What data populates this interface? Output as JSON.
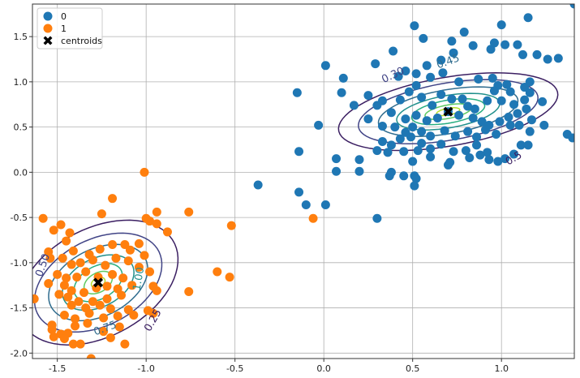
{
  "chart_data": {
    "type": "scatter",
    "title": "",
    "xlabel": "",
    "ylabel": "",
    "xlim": [
      -1.64,
      1.41
    ],
    "ylim": [
      -2.06,
      1.86
    ],
    "grid": true,
    "legend_placement": "top-left",
    "x_ticks": [
      "-1.5",
      "-1.0",
      "-0.5",
      "0.0",
      "0.5",
      "1.0"
    ],
    "y_ticks": [
      "-2.0",
      "-1.5",
      "-1.0",
      "-0.5",
      "0.0",
      "0.5",
      "1.0",
      "1.5"
    ],
    "series": [
      {
        "name": "0",
        "color": "#1f77b4",
        "points": [
          [
            0.51,
            1.62
          ],
          [
            0.56,
            1.48
          ],
          [
            0.72,
            1.45
          ],
          [
            0.79,
            1.55
          ],
          [
            0.96,
            1.43
          ],
          [
            1.0,
            1.63
          ],
          [
            1.15,
            1.71
          ],
          [
            0.29,
            1.2
          ],
          [
            0.39,
            1.34
          ],
          [
            0.46,
            1.12
          ],
          [
            0.58,
            1.18
          ],
          [
            0.66,
            1.24
          ],
          [
            0.73,
            1.32
          ],
          [
            0.84,
            1.4
          ],
          [
            0.94,
            1.36
          ],
          [
            1.02,
            1.41
          ],
          [
            1.09,
            1.41
          ],
          [
            1.12,
            1.3
          ],
          [
            1.2,
            1.3
          ],
          [
            1.26,
            1.25
          ],
          [
            1.32,
            1.26
          ],
          [
            0.01,
            1.18
          ],
          [
            0.11,
            1.04
          ],
          [
            0.42,
            1.06
          ],
          [
            0.52,
            1.09
          ],
          [
            0.6,
            1.05
          ],
          [
            0.67,
            1.1
          ],
          [
            0.76,
            1.0
          ],
          [
            0.87,
            1.03
          ],
          [
            0.95,
            1.04
          ],
          [
            0.98,
            0.96
          ],
          [
            1.03,
            0.97
          ],
          [
            1.05,
            0.89
          ],
          [
            1.13,
            0.94
          ],
          [
            1.16,
            1.0
          ],
          [
            -0.15,
            0.88
          ],
          [
            0.1,
            0.88
          ],
          [
            0.25,
            0.85
          ],
          [
            0.33,
            0.79
          ],
          [
            0.43,
            0.8
          ],
          [
            0.48,
            0.89
          ],
          [
            0.52,
            0.96
          ],
          [
            0.55,
            0.83
          ],
          [
            0.61,
            0.74
          ],
          [
            0.66,
            0.86
          ],
          [
            0.72,
            0.81
          ],
          [
            0.78,
            0.81
          ],
          [
            0.81,
            0.73
          ],
          [
            0.85,
            0.7
          ],
          [
            0.92,
            0.79
          ],
          [
            0.96,
            0.9
          ],
          [
            1.0,
            0.79
          ],
          [
            1.07,
            0.75
          ],
          [
            1.13,
            0.8
          ],
          [
            1.16,
            0.88
          ],
          [
            1.23,
            0.78
          ],
          [
            0.17,
            0.74
          ],
          [
            0.3,
            0.74
          ],
          [
            0.38,
            0.66
          ],
          [
            0.46,
            0.59
          ],
          [
            0.52,
            0.63
          ],
          [
            0.58,
            0.57
          ],
          [
            0.64,
            0.6
          ],
          [
            0.7,
            0.67
          ],
          [
            0.76,
            0.63
          ],
          [
            0.84,
            0.6
          ],
          [
            0.89,
            0.56
          ],
          [
            0.93,
            0.52
          ],
          [
            0.99,
            0.56
          ],
          [
            1.04,
            0.61
          ],
          [
            1.09,
            0.65
          ],
          [
            1.14,
            0.7
          ],
          [
            1.17,
            0.58
          ],
          [
            -0.03,
            0.52
          ],
          [
            0.25,
            0.59
          ],
          [
            0.33,
            0.51
          ],
          [
            0.4,
            0.5
          ],
          [
            0.46,
            0.44
          ],
          [
            0.5,
            0.5
          ],
          [
            0.55,
            0.45
          ],
          [
            0.6,
            0.4
          ],
          [
            0.68,
            0.46
          ],
          [
            0.74,
            0.4
          ],
          [
            0.81,
            0.45
          ],
          [
            0.86,
            0.39
          ],
          [
            0.91,
            0.47
          ],
          [
            0.97,
            0.42
          ],
          [
            1.05,
            0.52
          ],
          [
            1.1,
            0.52
          ],
          [
            1.16,
            0.45
          ],
          [
            1.24,
            0.52
          ],
          [
            0.33,
            0.34
          ],
          [
            0.38,
            0.3
          ],
          [
            0.43,
            0.37
          ],
          [
            0.49,
            0.39
          ],
          [
            0.55,
            0.32
          ],
          [
            0.6,
            0.26
          ],
          [
            0.66,
            0.31
          ],
          [
            0.73,
            0.23
          ],
          [
            0.8,
            0.24
          ],
          [
            0.86,
            0.3
          ],
          [
            0.92,
            0.22
          ],
          [
            1.11,
            0.3
          ],
          [
            1.15,
            0.3
          ],
          [
            1.37,
            0.42
          ],
          [
            1.4,
            0.38
          ],
          [
            -0.14,
            0.23
          ],
          [
            0.3,
            0.24
          ],
          [
            0.36,
            0.22
          ],
          [
            0.45,
            0.23
          ],
          [
            0.53,
            0.24
          ],
          [
            0.6,
            0.17
          ],
          [
            0.71,
            0.11
          ],
          [
            0.82,
            0.16
          ],
          [
            0.88,
            0.19
          ],
          [
            0.93,
            0.14
          ],
          [
            0.98,
            0.12
          ],
          [
            1.02,
            0.15
          ],
          [
            1.07,
            0.2
          ],
          [
            0.07,
            0.15
          ],
          [
            0.2,
            0.14
          ],
          [
            0.5,
            0.12
          ],
          [
            0.07,
            0.01
          ],
          [
            0.2,
            0.01
          ],
          [
            0.38,
            0.0
          ],
          [
            0.45,
            -0.04
          ],
          [
            0.51,
            -0.04
          ],
          [
            0.52,
            -0.07
          ],
          [
            0.7,
            0.08
          ],
          [
            0.51,
            -0.15
          ],
          [
            0.37,
            -0.04
          ],
          [
            -0.37,
            -0.14
          ],
          [
            -0.14,
            -0.22
          ],
          [
            -0.1,
            -0.36
          ],
          [
            0.01,
            -0.36
          ],
          [
            0.3,
            -0.51
          ],
          [
            1.41,
            1.86
          ]
        ]
      },
      {
        "name": "1",
        "color": "#ff7f0e",
        "points": [
          [
            -1.01,
            0.0
          ],
          [
            -1.19,
            -0.29
          ],
          [
            -1.58,
            -0.51
          ],
          [
            -1.48,
            -0.58
          ],
          [
            -1.45,
            -0.76
          ],
          [
            -1.43,
            -0.67
          ],
          [
            -1.52,
            -0.64
          ],
          [
            -1.25,
            -0.46
          ],
          [
            -1.0,
            -0.51
          ],
          [
            -0.76,
            -0.44
          ],
          [
            -0.94,
            -0.44
          ],
          [
            -0.98,
            -0.54
          ],
          [
            -0.94,
            -0.57
          ],
          [
            -0.88,
            -0.66
          ],
          [
            -1.55,
            -0.88
          ],
          [
            -1.41,
            -0.87
          ],
          [
            -1.32,
            -0.91
          ],
          [
            -1.26,
            -0.85
          ],
          [
            -1.19,
            -0.8
          ],
          [
            -1.12,
            -0.8
          ],
          [
            -1.04,
            -0.79
          ],
          [
            -1.09,
            -0.86
          ],
          [
            -1.01,
            -0.92
          ],
          [
            -1.54,
            -0.95
          ],
          [
            -1.47,
            -0.95
          ],
          [
            -1.42,
            -1.02
          ],
          [
            -1.37,
            -1.0
          ],
          [
            -1.3,
            -0.97
          ],
          [
            -1.23,
            -1.03
          ],
          [
            -1.17,
            -0.95
          ],
          [
            -1.1,
            -0.98
          ],
          [
            -1.04,
            -1.05
          ],
          [
            -0.98,
            -1.1
          ],
          [
            -1.55,
            -1.23
          ],
          [
            -1.5,
            -1.13
          ],
          [
            -1.45,
            -1.17
          ],
          [
            -1.39,
            -1.16
          ],
          [
            -1.34,
            -1.1
          ],
          [
            -1.27,
            -1.16
          ],
          [
            -1.19,
            -1.13
          ],
          [
            -1.13,
            -1.17
          ],
          [
            -1.08,
            -1.25
          ],
          [
            -1.46,
            -1.25
          ],
          [
            -1.42,
            -1.31
          ],
          [
            -1.35,
            -1.33
          ],
          [
            -1.28,
            -1.28
          ],
          [
            -1.22,
            -1.26
          ],
          [
            -1.16,
            -1.29
          ],
          [
            -1.14,
            -1.36
          ],
          [
            -1.22,
            -1.4
          ],
          [
            -1.3,
            -1.43
          ],
          [
            -1.38,
            -1.43
          ],
          [
            -1.44,
            -1.38
          ],
          [
            -1.49,
            -1.35
          ],
          [
            -1.42,
            -1.47
          ],
          [
            -1.34,
            -1.5
          ],
          [
            -1.26,
            -1.47
          ],
          [
            -1.2,
            -1.51
          ],
          [
            -1.1,
            -1.52
          ],
          [
            -1.46,
            -1.58
          ],
          [
            -1.4,
            -1.62
          ],
          [
            -1.32,
            -1.56
          ],
          [
            -1.24,
            -1.61
          ],
          [
            -1.16,
            -1.59
          ],
          [
            -1.07,
            -1.58
          ],
          [
            -0.99,
            -1.53
          ],
          [
            -0.96,
            -1.56
          ],
          [
            -0.94,
            -1.31
          ],
          [
            -0.96,
            -1.26
          ],
          [
            -0.76,
            -1.32
          ],
          [
            -0.6,
            -1.1
          ],
          [
            -0.53,
            -1.16
          ],
          [
            -0.52,
            -0.59
          ],
          [
            -0.06,
            -0.51
          ],
          [
            -1.63,
            -1.4
          ],
          [
            -1.53,
            -1.69
          ],
          [
            -1.53,
            -1.74
          ],
          [
            -1.48,
            -1.79
          ],
          [
            -1.44,
            -1.78
          ],
          [
            -1.4,
            -1.7
          ],
          [
            -1.33,
            -1.67
          ],
          [
            -1.24,
            -1.76
          ],
          [
            -1.15,
            -1.71
          ],
          [
            -1.52,
            -1.82
          ],
          [
            -1.46,
            -1.84
          ],
          [
            -1.41,
            -1.9
          ],
          [
            -1.37,
            -1.9
          ],
          [
            -1.2,
            -1.83
          ],
          [
            -1.12,
            -1.9
          ],
          [
            -1.31,
            -2.06
          ]
        ]
      },
      {
        "name": "centroids",
        "color": "#000000",
        "marker": "X",
        "points": [
          [
            0.7,
            0.67
          ],
          [
            -1.27,
            -1.22
          ]
        ]
      }
    ],
    "contours": [
      {
        "group": "0",
        "center": [
          0.7,
          0.67
        ],
        "angle_deg": 25,
        "levels": [
          {
            "value": "0.5",
            "rx": 0.66,
            "ry": 0.36,
            "color": "#3b1f62",
            "label": "0.5",
            "label_at": [
              1.07,
              0.15
            ],
            "label_rot": -30
          },
          {
            "value": "0.3",
            "rx": 0.54,
            "ry": 0.3,
            "color": "#414486",
            "label": "0.30",
            "label_at": [
              0.39,
              1.07
            ],
            "label_rot": -25
          },
          {
            "value": "0.45",
            "rx": 0.42,
            "ry": 0.23,
            "color": "#2f6c8e",
            "label": "0.45",
            "label_at": [
              0.7,
              1.22
            ],
            "label_rot": -20
          },
          {
            "value": "0.6",
            "rx": 0.31,
            "ry": 0.17,
            "color": "#21908c",
            "label": "",
            "label_at": null,
            "label_rot": 0
          },
          {
            "value": "0.75",
            "rx": 0.22,
            "ry": 0.12,
            "color": "#28ae80",
            "label": "",
            "label_at": null,
            "label_rot": 0
          },
          {
            "value": "0.9",
            "rx": 0.14,
            "ry": 0.07,
            "color": "#5ec962",
            "label": "",
            "label_at": null,
            "label_rot": 0
          },
          {
            "value": "1.05",
            "rx": 0.07,
            "ry": 0.035,
            "color": "#b5de2b",
            "label": "",
            "label_at": null,
            "label_rot": 0
          }
        ]
      },
      {
        "group": "1",
        "center": [
          -1.27,
          -1.22
        ],
        "angle_deg": 70,
        "levels": [
          {
            "value": "0.25",
            "rx": 0.72,
            "ry": 0.4,
            "color": "#3b1f62",
            "label": "0.25",
            "label_at": [
              -0.96,
              -1.64
            ],
            "label_rot": -60
          },
          {
            "value": "0.5",
            "rx": 0.57,
            "ry": 0.32,
            "color": "#414486",
            "label": "0.50",
            "label_at": [
              -1.58,
              -1.03
            ],
            "label_rot": -70
          },
          {
            "value": "0.75",
            "rx": 0.44,
            "ry": 0.25,
            "color": "#2f6c8e",
            "label": "0.75",
            "label_at": [
              -1.23,
              -1.73
            ],
            "label_rot": -20
          },
          {
            "value": "1.0",
            "rx": 0.32,
            "ry": 0.18,
            "color": "#21908c",
            "label": "1.00",
            "label_at": [
              -1.04,
              -1.18
            ],
            "label_rot": -80
          },
          {
            "value": "1.25",
            "rx": 0.22,
            "ry": 0.12,
            "color": "#28ae80",
            "label": "",
            "label_at": null,
            "label_rot": 0
          },
          {
            "value": "1.5",
            "rx": 0.13,
            "ry": 0.07,
            "color": "#5ec962",
            "label": "",
            "label_at": null,
            "label_rot": 0
          },
          {
            "value": "1.75",
            "rx": 0.06,
            "ry": 0.035,
            "color": "#b5de2b",
            "label": "",
            "label_at": null,
            "label_rot": 0
          }
        ]
      }
    ]
  }
}
